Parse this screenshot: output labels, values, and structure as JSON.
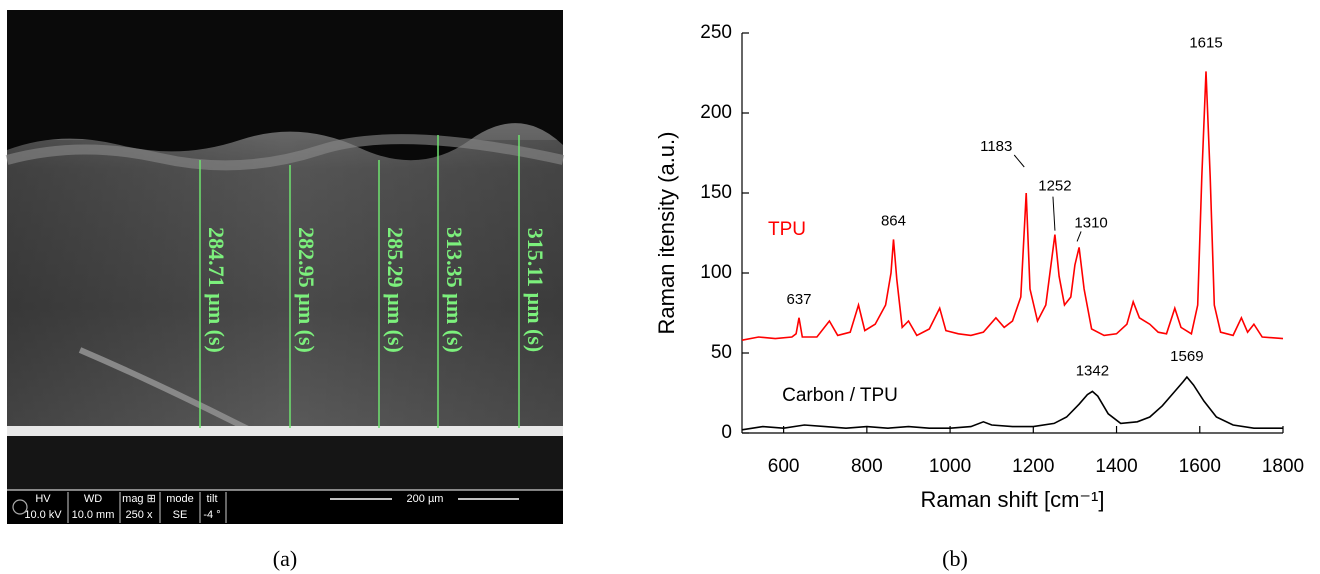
{
  "sem_image": {
    "caption": "(a)",
    "measurements": [
      "284.71 µm (s)",
      "282.95 µm (s)",
      "285.29 µm (s)",
      "313.35 µm (s)",
      "315.11 µm (s)"
    ],
    "info_bar": {
      "headers": [
        "HV",
        "WD",
        "mag ⊞",
        "mode",
        "tilt"
      ],
      "values": [
        "10.0 kV",
        "10.0 mm",
        "250 x",
        "SE",
        "-4 °"
      ],
      "scale_bar": "200 µm"
    }
  },
  "chart_data": {
    "type": "line",
    "caption": "(b)",
    "x_label": "Raman shift [cm⁻¹]",
    "y_label": "Raman itensity (a.u.)",
    "xlim": [
      500,
      1800
    ],
    "ylim": [
      0,
      250
    ],
    "xticks": [
      600,
      800,
      1000,
      1200,
      1400,
      1600,
      1800
    ],
    "yticks": [
      0,
      50,
      100,
      150,
      200,
      250
    ],
    "series": [
      {
        "name": "TPU",
        "color": "#ff0000",
        "x": [
          500,
          540,
          580,
          620,
          630,
          637,
          645,
          680,
          710,
          730,
          760,
          780,
          795,
          820,
          845,
          858,
          864,
          872,
          885,
          900,
          920,
          950,
          975,
          990,
          1020,
          1050,
          1080,
          1110,
          1130,
          1150,
          1170,
          1183,
          1192,
          1210,
          1230,
          1245,
          1252,
          1262,
          1275,
          1290,
          1300,
          1310,
          1322,
          1340,
          1370,
          1400,
          1425,
          1440,
          1455,
          1480,
          1500,
          1520,
          1540,
          1555,
          1580,
          1595,
          1605,
          1615,
          1625,
          1635,
          1650,
          1680,
          1700,
          1715,
          1730,
          1750,
          1800
        ],
        "values": [
          58,
          60,
          59,
          60,
          62,
          72,
          60,
          60,
          70,
          61,
          63,
          80,
          64,
          68,
          80,
          100,
          121,
          96,
          66,
          70,
          61,
          65,
          78,
          64,
          62,
          61,
          63,
          72,
          66,
          70,
          85,
          150,
          90,
          70,
          80,
          110,
          124,
          98,
          80,
          85,
          105,
          116,
          90,
          65,
          61,
          62,
          68,
          82,
          72,
          68,
          63,
          62,
          78,
          66,
          62,
          80,
          160,
          226,
          160,
          80,
          63,
          61,
          72,
          63,
          68,
          60,
          59
        ],
        "peaks": [
          637,
          864,
          1183,
          1252,
          1310,
          1615
        ]
      },
      {
        "name": "Carbon / TPU",
        "color": "#000000",
        "x": [
          500,
          550,
          600,
          650,
          700,
          750,
          800,
          850,
          900,
          950,
          1000,
          1050,
          1080,
          1100,
          1150,
          1200,
          1250,
          1280,
          1310,
          1330,
          1342,
          1355,
          1380,
          1410,
          1450,
          1480,
          1510,
          1540,
          1560,
          1569,
          1585,
          1610,
          1640,
          1680,
          1730,
          1800
        ],
        "values": [
          2,
          4,
          3,
          5,
          4,
          3,
          4,
          3,
          4,
          3,
          3,
          4,
          7,
          5,
          4,
          4,
          6,
          10,
          18,
          24,
          26,
          23,
          12,
          6,
          7,
          10,
          17,
          26,
          32,
          35,
          30,
          20,
          10,
          5,
          3,
          3
        ],
        "peaks": [
          1342,
          1569
        ]
      }
    ]
  }
}
